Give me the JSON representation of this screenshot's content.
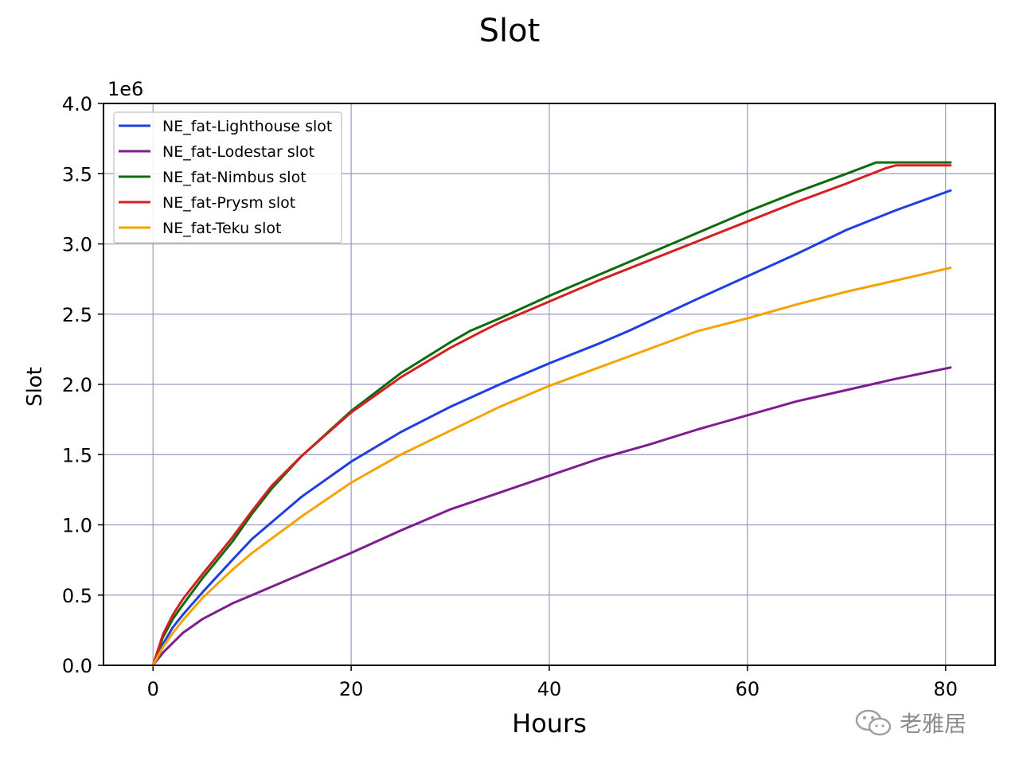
{
  "chart_data": {
    "type": "line",
    "title": "Slot",
    "xlabel": "Hours",
    "ylabel": "Slot",
    "y_offset_label": "1e6",
    "xlim": [
      -5,
      85
    ],
    "ylim": [
      0,
      4000000
    ],
    "x_ticks": [
      0,
      20,
      40,
      60,
      80
    ],
    "x_tick_labels": [
      "0",
      "20",
      "40",
      "60",
      "80"
    ],
    "y_ticks": [
      0,
      500000,
      1000000,
      1500000,
      2000000,
      2500000,
      3000000,
      3500000,
      4000000
    ],
    "y_tick_labels": [
      "0.0",
      "0.5",
      "1.0",
      "1.5",
      "2.0",
      "2.5",
      "3.0",
      "3.5",
      "4.0"
    ],
    "grid": true,
    "legend_position": "top-left",
    "series": [
      {
        "name": "NE_fat-Lighthouse slot",
        "color": "#1f3fe0",
        "x": [
          0,
          1,
          2,
          3,
          5,
          8,
          10,
          15,
          20,
          25,
          30,
          35,
          40,
          45,
          48,
          55,
          60,
          65,
          70,
          75,
          80.5
        ],
        "y": [
          0,
          150000,
          270000,
          360000,
          520000,
          750000,
          900000,
          1200000,
          1450000,
          1660000,
          1840000,
          2000000,
          2150000,
          2290000,
          2380000,
          2610000,
          2770000,
          2930000,
          3100000,
          3240000,
          3380000
        ]
      },
      {
        "name": "NE_fat-Lodestar slot",
        "color": "#7f1c8f",
        "x": [
          0,
          1,
          2,
          3,
          5,
          8,
          10,
          15,
          20,
          25,
          30,
          35,
          40,
          45,
          50,
          55,
          60,
          65,
          70,
          75,
          80.5
        ],
        "y": [
          0,
          90000,
          160000,
          230000,
          330000,
          440000,
          500000,
          650000,
          800000,
          960000,
          1110000,
          1230000,
          1350000,
          1470000,
          1570000,
          1680000,
          1780000,
          1880000,
          1960000,
          2040000,
          2120000
        ]
      },
      {
        "name": "NE_fat-Nimbus slot",
        "color": "#0d6b0d",
        "x": [
          0,
          1,
          2,
          3,
          5,
          8,
          10,
          12,
          15,
          20,
          25,
          30,
          32,
          35,
          40,
          45,
          50,
          55,
          60,
          65,
          70,
          73,
          75,
          80.5
        ],
        "y": [
          0,
          200000,
          330000,
          430000,
          620000,
          880000,
          1080000,
          1260000,
          1490000,
          1810000,
          2080000,
          2300000,
          2380000,
          2470000,
          2630000,
          2780000,
          2930000,
          3080000,
          3230000,
          3370000,
          3500000,
          3580000,
          3580000,
          3580000
        ]
      },
      {
        "name": "NE_fat-Prysm slot",
        "color": "#d42020",
        "x": [
          0,
          1,
          2,
          3,
          5,
          8,
          10,
          12,
          15,
          20,
          25,
          30,
          33,
          35,
          40,
          45,
          50,
          55,
          60,
          65,
          70,
          74,
          75,
          80.5
        ],
        "y": [
          0,
          220000,
          360000,
          470000,
          650000,
          910000,
          1100000,
          1280000,
          1490000,
          1800000,
          2050000,
          2260000,
          2370000,
          2440000,
          2590000,
          2740000,
          2880000,
          3020000,
          3160000,
          3300000,
          3430000,
          3540000,
          3560000,
          3560000
        ]
      },
      {
        "name": "NE_fat-Teku slot",
        "color": "#f5a300",
        "x": [
          0,
          1,
          2,
          3,
          5,
          8,
          10,
          15,
          20,
          25,
          30,
          35,
          40,
          45,
          50,
          55,
          60,
          65,
          70,
          75,
          80.5
        ],
        "y": [
          0,
          130000,
          230000,
          320000,
          480000,
          680000,
          800000,
          1060000,
          1300000,
          1500000,
          1670000,
          1840000,
          1990000,
          2120000,
          2250000,
          2380000,
          2470000,
          2570000,
          2660000,
          2740000,
          2830000
        ]
      }
    ]
  },
  "watermark": {
    "text": "老雅居",
    "icon": "wechat-icon"
  }
}
